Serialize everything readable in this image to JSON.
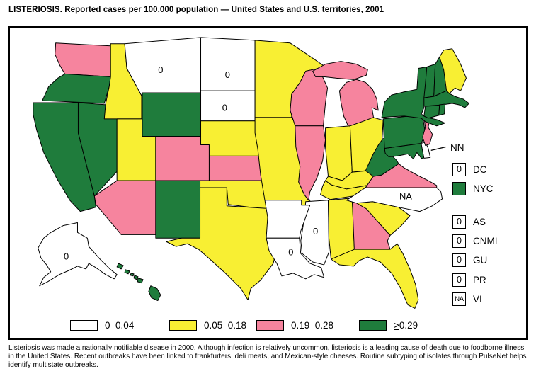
{
  "title": "LISTERIOSIS. Reported cases per 100,000 population — United States and U.S. territories, 2001",
  "footnote": "Listeriosis was made a nationally notifiable disease in 2000. Although infection is relatively uncommon, listeriosis is a leading cause of death due to foodborne illness in the United States. Recent outbreaks have been linked to frankfurters, deli meats, and Mexican-style cheeses. Routine subtyping of isolates through PulseNet helps identify multistate outbreaks.",
  "legend": {
    "items": [
      {
        "key": "0–0.04",
        "prefix": "",
        "label": "0–0.04",
        "color": "#ffffff"
      },
      {
        "key": "0.05–0.18",
        "prefix": "",
        "label": "0.05–0.18",
        "color": "#f8ef33"
      },
      {
        "key": "0.19–0.28",
        "prefix": "",
        "label": "0.19–0.28",
        "color": "#f6849e"
      },
      {
        "key": "≥0.29",
        "prefix": ">",
        "label": "0.29",
        "color": "#1f7c3c"
      }
    ]
  },
  "side_legend": {
    "nn_label": "NN",
    "items": [
      {
        "code": "DC",
        "value": "0",
        "fill": "#ffffff"
      },
      {
        "code": "NYC",
        "value": "",
        "fill": "#1f7c3c"
      },
      {
        "code": "AS",
        "value": "0",
        "fill": "#ffffff"
      },
      {
        "code": "CNMI",
        "value": "0",
        "fill": "#ffffff"
      },
      {
        "code": "GU",
        "value": "0",
        "fill": "#ffffff"
      },
      {
        "code": "PR",
        "value": "0",
        "fill": "#ffffff"
      },
      {
        "code": "VI",
        "value": "NA",
        "fill": "#ffffff"
      }
    ]
  },
  "chart_data": {
    "type": "choropleth",
    "title": "LISTERIOSIS. Reported cases per 100,000 population — United States and U.S. territories, 2001",
    "measure": "Reported cases per 100,000 population",
    "year": 2001,
    "categories": [
      "0–0.04",
      "0.05–0.18",
      "0.19–0.28",
      "≥0.29"
    ],
    "state_categories": {
      "WA": "0.19–0.28",
      "OR": "≥0.29",
      "CA": "≥0.29",
      "NV": "≥0.29",
      "ID": "0.05–0.18",
      "MT": "0–0.04",
      "WY": "≥0.29",
      "UT": "0.05–0.18",
      "CO": "0.19–0.28",
      "AZ": "0.19–0.28",
      "NM": "≥0.29",
      "ND": "0–0.04",
      "SD": "0–0.04",
      "NE": "0.05–0.18",
      "KS": "0.19–0.28",
      "OK": "0.05–0.18",
      "TX": "0.05–0.18",
      "MN": "0.05–0.18",
      "IA": "0.05–0.18",
      "MO": "0.05–0.18",
      "WI": "0.19–0.28",
      "IL": "0.19–0.28",
      "MI": "0.19–0.28",
      "IN": "0.05–0.18",
      "OH": "0.05–0.18",
      "KY": "0.05–0.18",
      "TN": "0.05–0.18",
      "MS": "0–0.04",
      "AL": "0.05–0.18",
      "GA": "0.19–0.28",
      "FL": "0.05–0.18",
      "SC": "0.05–0.18",
      "NC": "NA",
      "VA": "0.19–0.28",
      "WV": "≥0.29",
      "MD": "≥0.29",
      "DE": "NN",
      "PA": "≥0.29",
      "NJ": "0.19–0.28",
      "NY": "≥0.29",
      "VT": "≥0.29",
      "NH": "≥0.29",
      "ME": "0.05–0.18",
      "MA": "≥0.29",
      "RI": "≥0.29",
      "CT": "≥0.29",
      "AR": "0–0.04",
      "LA": "0–0.04",
      "AK": "0–0.04",
      "HI": "≥0.29",
      "NYC": "≥0.29"
    },
    "area_labels": {
      "MT": "0",
      "ND": "0",
      "SD": "0",
      "MS": "0",
      "LA": "0",
      "AK": "0",
      "NC": "NA"
    },
    "territories": {
      "DC": "0",
      "NYC": "≥0.29",
      "AS": "0",
      "CNMI": "0",
      "GU": "0",
      "PR": "0",
      "VI": "NA"
    },
    "annotations": {
      "NN_pointer_target": "DE",
      "NN_meaning_label": "NN",
      "NA_label": "NA"
    }
  }
}
